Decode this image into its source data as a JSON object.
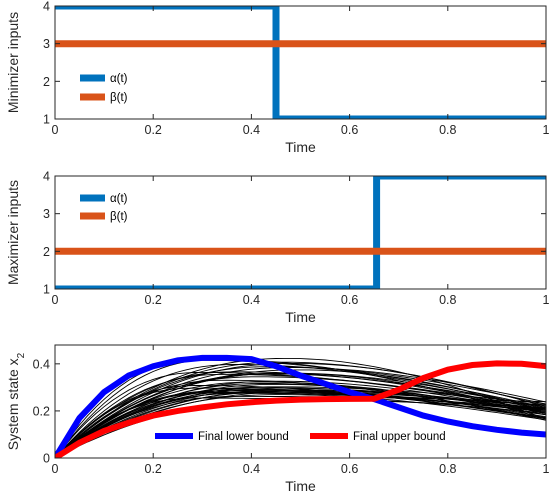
{
  "colors": {
    "blue": "#0072BD",
    "orange": "#D95319",
    "black": "#000000",
    "darkblue": "#0000FF",
    "red": "#FF0000"
  },
  "chart_data": [
    {
      "type": "line",
      "xlabel": "Time",
      "ylabel": "Minimizer inputs",
      "xlim": [
        0,
        1
      ],
      "ylim": [
        1,
        4
      ],
      "xticks": [
        "0",
        "0.2",
        "0.4",
        "0.6",
        "0.8",
        "1"
      ],
      "yticks": [
        "1",
        "2",
        "3",
        "4"
      ],
      "legend_placement": "lower-left",
      "series": [
        {
          "name": "α(t)",
          "color": "#0072BD",
          "x": [
            0,
            0.45,
            0.45,
            1
          ],
          "y": [
            4,
            4,
            1,
            1
          ]
        },
        {
          "name": "β(t)",
          "color": "#D95319",
          "x": [
            0,
            1
          ],
          "y": [
            3,
            3
          ]
        }
      ]
    },
    {
      "type": "line",
      "xlabel": "Time",
      "ylabel": "Maximizer inputs",
      "xlim": [
        0,
        1
      ],
      "ylim": [
        1,
        4
      ],
      "xticks": [
        "0",
        "0.2",
        "0.4",
        "0.6",
        "0.8",
        "1"
      ],
      "yticks": [
        "1",
        "2",
        "3",
        "4"
      ],
      "legend_placement": "top-left",
      "series": [
        {
          "name": "α(t)",
          "color": "#0072BD",
          "x": [
            0,
            0.655,
            0.655,
            1
          ],
          "y": [
            1,
            1,
            4,
            4
          ]
        },
        {
          "name": "β(t)",
          "color": "#D95319",
          "x": [
            0,
            1
          ],
          "y": [
            2,
            2
          ]
        }
      ]
    },
    {
      "type": "line",
      "xlabel": "Time",
      "ylabel": "System state x",
      "ylabel_subscript": "2",
      "xlim": [
        0,
        1
      ],
      "ylim": [
        0,
        0.48
      ],
      "xticks": [
        "0",
        "0.2",
        "0.4",
        "0.6",
        "0.8",
        "1"
      ],
      "yticks": [
        "0",
        "0.2",
        "0.4"
      ],
      "legend_placement": "bottom-center",
      "legend_orientation": "horizontal",
      "trajectories": {
        "color": "#000000",
        "count": 40,
        "peak_time_range": [
          0.28,
          0.5
        ],
        "peak_value_range": [
          0.24,
          0.44
        ],
        "end_value_range": [
          0.16,
          0.24
        ]
      },
      "series": [
        {
          "name": "Final lower bound",
          "color": "#0000FF",
          "x": [
            0,
            0.05,
            0.1,
            0.15,
            0.2,
            0.25,
            0.3,
            0.35,
            0.4,
            0.45,
            0.5,
            0.55,
            0.6,
            0.65,
            0.7,
            0.75,
            0.8,
            0.85,
            0.9,
            0.95,
            1.0
          ],
          "y": [
            0,
            0.17,
            0.28,
            0.35,
            0.39,
            0.415,
            0.425,
            0.425,
            0.42,
            0.39,
            0.35,
            0.315,
            0.28,
            0.25,
            0.215,
            0.18,
            0.155,
            0.135,
            0.12,
            0.108,
            0.1
          ]
        },
        {
          "name": "Final upper bound",
          "color": "#FF0000",
          "x": [
            0,
            0.05,
            0.1,
            0.15,
            0.2,
            0.25,
            0.3,
            0.35,
            0.4,
            0.45,
            0.5,
            0.55,
            0.6,
            0.65,
            0.7,
            0.75,
            0.8,
            0.85,
            0.9,
            0.95,
            1.0
          ],
          "y": [
            0,
            0.065,
            0.115,
            0.15,
            0.18,
            0.2,
            0.215,
            0.228,
            0.237,
            0.244,
            0.248,
            0.25,
            0.251,
            0.252,
            0.29,
            0.34,
            0.375,
            0.395,
            0.402,
            0.4,
            0.39
          ]
        }
      ]
    }
  ]
}
